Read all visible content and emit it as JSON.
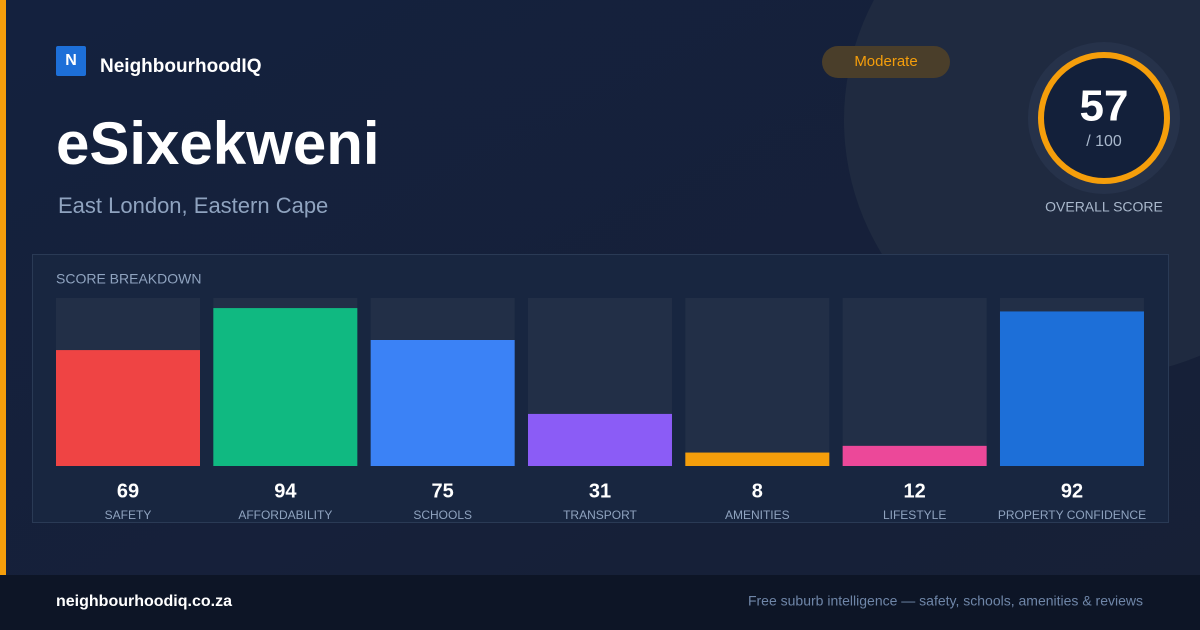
{
  "brand": "NeighbourhoodIQ",
  "logo_letter": "N",
  "badge": "Moderate",
  "title": "eSixekweni",
  "location": "East London, Eastern Cape",
  "overall_score": {
    "value": 57,
    "out_of": "/ 100",
    "label": "OVERALL SCORE"
  },
  "chart_data": {
    "type": "bar",
    "title": "SCORE BREAKDOWN",
    "categories": [
      "SAFETY",
      "AFFORDABILITY",
      "SCHOOLS",
      "TRANSPORT",
      "AMENITIES",
      "LIFESTYLE",
      "PROPERTY CONFIDENCE"
    ],
    "values": [
      69,
      94,
      75,
      31,
      8,
      12,
      92
    ],
    "colors": [
      "#ef4444",
      "#10b981",
      "#3b82f6",
      "#8b5cf6",
      "#f59e0b",
      "#ec4899",
      "#1d6fd8"
    ],
    "ylim": [
      0,
      100
    ]
  },
  "footer": {
    "site": "neighbourhoodiq.co.za",
    "tagline": "Free suburb intelligence — safety, schools, amenities & reviews"
  }
}
